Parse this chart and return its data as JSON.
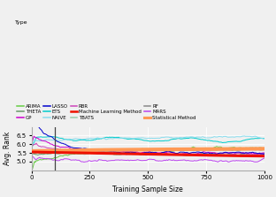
{
  "title": "",
  "xlabel": "Training Sample Size",
  "ylabel": "Avg. Rank",
  "xlim": [
    0,
    1000
  ],
  "ylim": [
    4.5,
    7.0
  ],
  "yticks": [
    5.0,
    5.5,
    6.0,
    6.5
  ],
  "xticks": [
    0,
    250,
    500,
    750,
    1000
  ],
  "vline_x": 100,
  "series": {
    "ARIMA": {
      "color": "#66cc44",
      "lw": 0.7
    },
    "ETS": {
      "color": "#00cccc",
      "lw": 0.7
    },
    "TBATS": {
      "color": "#99ccaa",
      "lw": 0.7
    },
    "THETA": {
      "color": "#669966",
      "lw": 0.7
    },
    "NAIVE": {
      "color": "#88ddee",
      "lw": 0.7
    },
    "RF": {
      "color": "#888888",
      "lw": 0.7
    },
    "GP": {
      "color": "#cc00cc",
      "lw": 0.7
    },
    "RBR": {
      "color": "#cc44bb",
      "lw": 0.7
    },
    "MARS": {
      "color": "#bb44ee",
      "lw": 0.7
    },
    "LASSO": {
      "color": "#0000cc",
      "lw": 0.7
    },
    "Machine Learning Method": {
      "color": "#ee1100",
      "lw": 2.2
    },
    "Statistical Method": {
      "color": "#ff9955",
      "lw": 3.0
    }
  },
  "background_color": "#f0f0f0",
  "legend_type_label": "Type"
}
